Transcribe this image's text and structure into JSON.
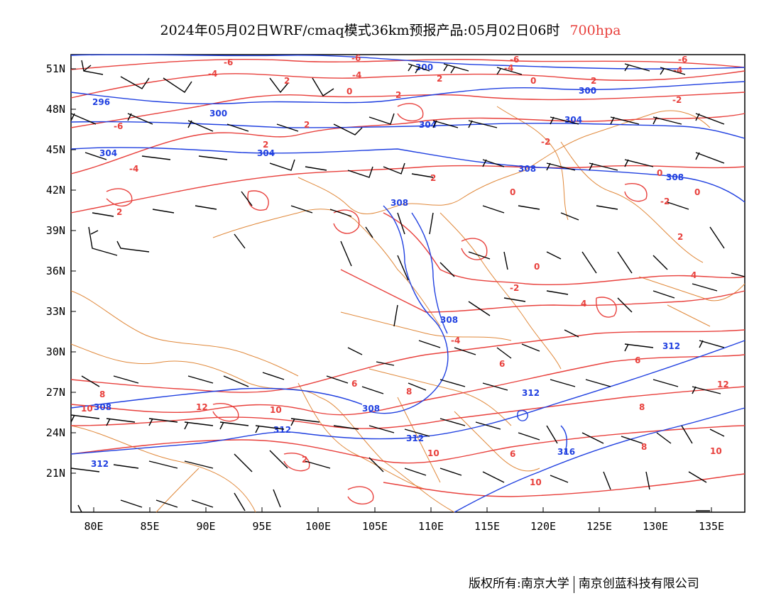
{
  "title": {
    "main": "2024年05月02日WRF/cmaq模式36km预报产品:05月02日06时",
    "level": "700hpa",
    "level_color": "#e8403c"
  },
  "axes": {
    "lat_labels": [
      "51N",
      "48N",
      "45N",
      "42N",
      "39N",
      "36N",
      "33N",
      "30N",
      "27N",
      "24N",
      "21N"
    ],
    "lon_labels": [
      "80E",
      "85E",
      "90E",
      "95E",
      "100E",
      "105E",
      "110E",
      "115E",
      "120E",
      "125E",
      "130E",
      "135E"
    ]
  },
  "colors": {
    "geopotential": "#2040e0",
    "temperature": "#e8403c",
    "boundary": "#e0883a",
    "wind": "#000000"
  },
  "contour_labels": {
    "geopotential": [
      "300",
      "296",
      "300",
      "304",
      "304",
      "304",
      "300",
      "304",
      "308",
      "308",
      "308",
      "308",
      "312",
      "308",
      "312",
      "312",
      "312",
      "316",
      "312",
      "308"
    ],
    "temperature": [
      "-6",
      "-6",
      "-4",
      "-4",
      "-6",
      "-4",
      "-6",
      "-4",
      "2",
      "2",
      "0",
      "2",
      "0",
      "2",
      "-6",
      "2",
      "2",
      "-2",
      "-2",
      "2",
      "2",
      "0",
      "0",
      "0",
      "2",
      "4",
      "-2",
      "-2",
      "0",
      "4",
      "-4",
      "-4",
      "6",
      "6",
      "6",
      "8",
      "8",
      "10",
      "12",
      "10",
      "2",
      "10",
      "6",
      "10",
      "8",
      "8",
      "10",
      "12"
    ]
  },
  "wind_barbs": [
    "w1",
    "w2",
    "w3",
    "w4",
    "w5",
    "w6",
    "w7",
    "w8",
    "w9",
    "w10",
    "w11",
    "w12",
    "w13",
    "w14",
    "w15",
    "w16",
    "w17",
    "w18",
    "w19",
    "w20"
  ],
  "copyright": {
    "left": "版权所有:南京大学",
    "right": "南京创蓝科技有限公司"
  }
}
